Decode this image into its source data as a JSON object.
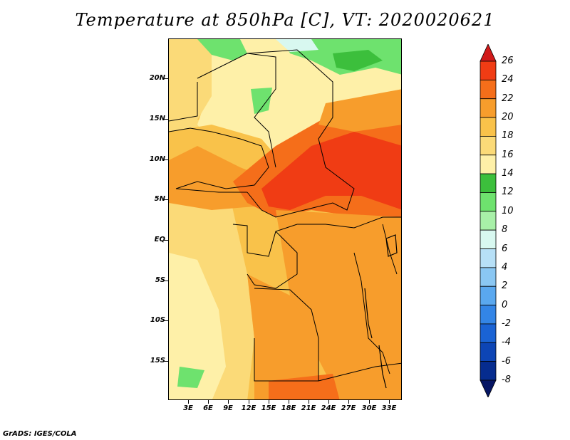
{
  "title": "Temperature at 850hPa [C], VT: 2020020621",
  "footer": "GrADS: IGES/COLA",
  "lat_labels": [
    "20N",
    "15N",
    "10N",
    "5N",
    "EQ",
    "5S",
    "10S",
    "15S"
  ],
  "lon_labels": [
    "3E",
    "6E",
    "9E",
    "12E",
    "15E",
    "18E",
    "21E",
    "24E",
    "27E",
    "30E",
    "33E"
  ],
  "colorbar": {
    "levels": [
      "26",
      "24",
      "22",
      "20",
      "18",
      "16",
      "14",
      "12",
      "10",
      "8",
      "6",
      "4",
      "2",
      "0",
      "-2",
      "-4",
      "-6",
      "-8"
    ],
    "colors": [
      "#d11a1a",
      "#f03c14",
      "#f56e1a",
      "#f79d2c",
      "#f9c24a",
      "#fbda78",
      "#fef0a8",
      "#3cbf3c",
      "#6ee26e",
      "#a8f0a8",
      "#d8f8f0",
      "#b7e0f7",
      "#8ac7f3",
      "#5aa8ef",
      "#3385e6",
      "#1a63d4",
      "#0d45b5",
      "#062c8f",
      "#061563"
    ]
  },
  "map_colors": {
    "t26": "#f03c14",
    "t24": "#f56e1a",
    "t22": "#f79d2c",
    "t20": "#f9c24a",
    "t18": "#fbda78",
    "t16": "#fef0a8",
    "t12": "#3cbf3c",
    "t10": "#6ee26e",
    "t8": "#a8f0a8",
    "t6": "#d8f8f0"
  }
}
